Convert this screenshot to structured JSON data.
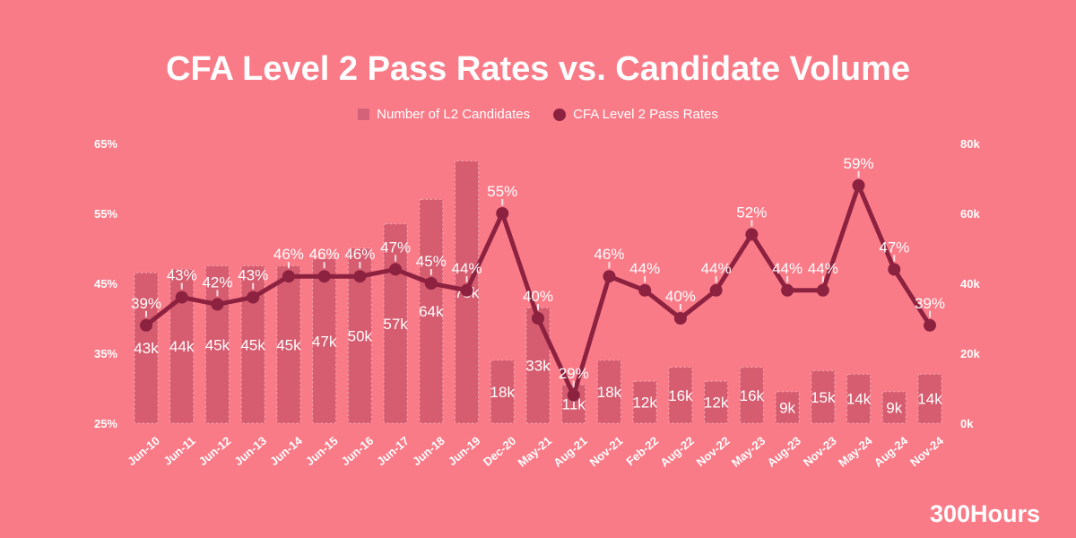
{
  "chart_data": {
    "type": "bar+line",
    "title": "CFA Level 2 Pass Rates vs. Candidate Volume",
    "categories": [
      "Jun-10",
      "Jun-11",
      "Jun-12",
      "Jun-13",
      "Jun-14",
      "Jun-15",
      "Jun-16",
      "Jun-17",
      "Jun-18",
      "Jun-19",
      "Dec-20",
      "May-21",
      "Aug-21",
      "Nov-21",
      "Feb-22",
      "Aug-22",
      "Nov-22",
      "May-23",
      "Aug-23",
      "Nov-23",
      "May-24",
      "Aug-24",
      "Nov-24"
    ],
    "series": [
      {
        "name": "Number of L2 Candidates",
        "type": "bar",
        "axis": "right",
        "unit": "k",
        "values": [
          43,
          44,
          45,
          45,
          45,
          47,
          50,
          57,
          64,
          75,
          18,
          33,
          11,
          18,
          12,
          16,
          12,
          16,
          9,
          15,
          14,
          9,
          14
        ],
        "labels": [
          "43k",
          "44k",
          "45k",
          "45k",
          "45k",
          "47k",
          "50k",
          "57k",
          "64k",
          "75k",
          "18k",
          "33k",
          "11k",
          "18k",
          "12k",
          "16k",
          "12k",
          "16k",
          "9k",
          "15k",
          "14k",
          "9k",
          "14k"
        ]
      },
      {
        "name": "CFA Level 2 Pass Rates",
        "type": "line",
        "axis": "left",
        "unit": "%",
        "values": [
          39,
          43,
          42,
          43,
          46,
          46,
          46,
          47,
          45,
          44,
          55,
          40,
          29,
          46,
          44,
          40,
          44,
          52,
          44,
          44,
          59,
          47,
          39
        ],
        "labels": [
          "39%",
          "43%",
          "42%",
          "43%",
          "46%",
          "46%",
          "46%",
          "47%",
          "45%",
          "44%",
          "55%",
          "40%",
          "29%",
          "46%",
          "44%",
          "40%",
          "44%",
          "52%",
          "44%",
          "44%",
          "59%",
          "47%",
          "39%"
        ]
      }
    ],
    "left_axis": {
      "min": 25,
      "max": 65,
      "ticks": [
        65,
        55,
        45,
        35,
        25
      ],
      "tick_labels": [
        "65%",
        "55%",
        "45%",
        "35%",
        "25%"
      ]
    },
    "right_axis": {
      "min": 0,
      "max": 80,
      "ticks": [
        80,
        60,
        40,
        20,
        0
      ],
      "tick_labels": [
        "80k",
        "60k",
        "40k",
        "20k",
        "0k"
      ]
    },
    "legend_position": "top-center",
    "grid": false
  },
  "colors": {
    "background": "#FA7B88",
    "bar": "#D65C6F",
    "bar_border": "rgba(255,255,255,0.45)",
    "line": "#8C2240",
    "text": "#FFFFFF"
  },
  "footer": {
    "watermark": "300Hours"
  }
}
